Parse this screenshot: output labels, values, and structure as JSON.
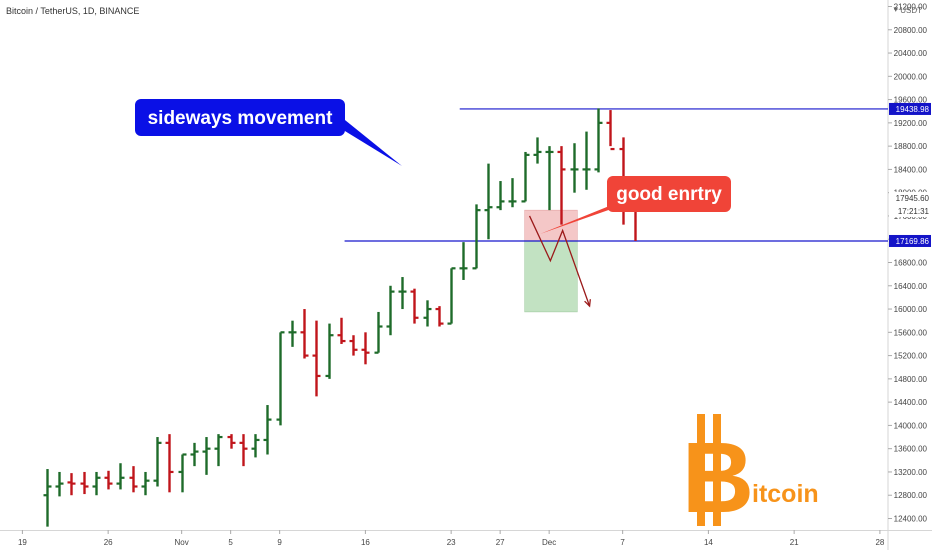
{
  "header": {
    "symbol_title": "Bitcoin / TetherUS, 1D, BINANCE",
    "currency": "USDT"
  },
  "chart_data": {
    "type": "ohlc",
    "title": "Bitcoin / TetherUS, 1D, BINANCE",
    "y_ticks": [
      12400,
      12800,
      13200,
      13600,
      14000,
      14400,
      14800,
      15200,
      15600,
      16000,
      16400,
      16800,
      17200,
      17600,
      18000,
      18400,
      18800,
      19200,
      19600,
      20000,
      20400,
      20800,
      21200
    ],
    "y_tick_labels": [
      "12400.00",
      "12800.00",
      "13200.00",
      "13600.00",
      "14000.00",
      "14400.00",
      "14800.00",
      "15200.00",
      "15600.00",
      "16000.00",
      "16400.00",
      "16800.00",
      "17200.00",
      "17600.00",
      "18000.00",
      "18400.00",
      "18800.00",
      "19200.00",
      "19600.00",
      "20000.00",
      "20400.00",
      "20800.00",
      "21200.00"
    ],
    "ylim": [
      12260,
      21260
    ],
    "x_labels": [
      {
        "label": "19",
        "day": 0
      },
      {
        "label": "26",
        "day": 7
      },
      {
        "label": "Nov",
        "day": 13
      },
      {
        "label": "5",
        "day": 17
      },
      {
        "label": "9",
        "day": 21
      },
      {
        "label": "16",
        "day": 28
      },
      {
        "label": "23",
        "day": 35
      },
      {
        "label": "27",
        "day": 39
      },
      {
        "label": "Dec",
        "day": 43
      },
      {
        "label": "7",
        "day": 49
      },
      {
        "label": "14",
        "day": 56
      },
      {
        "label": "21",
        "day": 63
      },
      {
        "label": "28",
        "day": 70
      }
    ],
    "price_badges": [
      {
        "value": "19438.98",
        "style": "blue"
      },
      {
        "value": "17945.60",
        "style": "plain"
      },
      {
        "value": "17:21:31",
        "style": "plain"
      },
      {
        "value": "17169.86",
        "style": "blue"
      }
    ],
    "horizontal_lines": [
      {
        "value": 19438.98,
        "from_day": 35.7
      },
      {
        "value": 17169.86,
        "from_day": 26.3
      }
    ],
    "candles": [
      {
        "day": 2,
        "o": 12800,
        "h": 13250,
        "l": 12260,
        "c": 12950
      },
      {
        "day": 3,
        "o": 12950,
        "h": 13200,
        "l": 12780,
        "c": 13000
      },
      {
        "day": 4,
        "o": 13020,
        "h": 13180,
        "l": 12800,
        "c": 13000
      },
      {
        "day": 5,
        "o": 13000,
        "h": 13200,
        "l": 12820,
        "c": 12950
      },
      {
        "day": 6,
        "o": 12950,
        "h": 13200,
        "l": 12800,
        "c": 13100
      },
      {
        "day": 7,
        "o": 13100,
        "h": 13220,
        "l": 12900,
        "c": 13000
      },
      {
        "day": 8,
        "o": 13000,
        "h": 13350,
        "l": 12900,
        "c": 13100
      },
      {
        "day": 9,
        "o": 13100,
        "h": 13300,
        "l": 12850,
        "c": 12950
      },
      {
        "day": 10,
        "o": 12950,
        "h": 13200,
        "l": 12800,
        "c": 13050
      },
      {
        "day": 11,
        "o": 13050,
        "h": 13800,
        "l": 12950,
        "c": 13700
      },
      {
        "day": 12,
        "o": 13700,
        "h": 13850,
        "l": 12850,
        "c": 13200
      },
      {
        "day": 13,
        "o": 13200,
        "h": 13500,
        "l": 12850,
        "c": 13500
      },
      {
        "day": 14,
        "o": 13500,
        "h": 13700,
        "l": 13300,
        "c": 13550
      },
      {
        "day": 15,
        "o": 13550,
        "h": 13800,
        "l": 13150,
        "c": 13600
      },
      {
        "day": 16,
        "o": 13600,
        "h": 13850,
        "l": 13300,
        "c": 13800
      },
      {
        "day": 17,
        "o": 13800,
        "h": 13850,
        "l": 13600,
        "c": 13700
      },
      {
        "day": 18,
        "o": 13700,
        "h": 13850,
        "l": 13300,
        "c": 13600
      },
      {
        "day": 19,
        "o": 13600,
        "h": 13850,
        "l": 13450,
        "c": 13750
      },
      {
        "day": 20,
        "o": 13750,
        "h": 14350,
        "l": 13500,
        "c": 14100
      },
      {
        "day": 21,
        "o": 14100,
        "h": 15600,
        "l": 14000,
        "c": 15600
      },
      {
        "day": 22,
        "o": 15600,
        "h": 15800,
        "l": 15350,
        "c": 15600
      },
      {
        "day": 23,
        "o": 15600,
        "h": 16000,
        "l": 15150,
        "c": 15200
      },
      {
        "day": 24,
        "o": 15200,
        "h": 15800,
        "l": 14500,
        "c": 14850
      },
      {
        "day": 25,
        "o": 14850,
        "h": 15750,
        "l": 14800,
        "c": 15550
      },
      {
        "day": 26,
        "o": 15550,
        "h": 15850,
        "l": 15400,
        "c": 15450
      },
      {
        "day": 27,
        "o": 15450,
        "h": 15550,
        "l": 15200,
        "c": 15300
      },
      {
        "day": 28,
        "o": 15300,
        "h": 15600,
        "l": 15050,
        "c": 15250
      },
      {
        "day": 29,
        "o": 15250,
        "h": 15950,
        "l": 15250,
        "c": 15700
      },
      {
        "day": 30,
        "o": 15700,
        "h": 16400,
        "l": 15550,
        "c": 16300
      },
      {
        "day": 31,
        "o": 16300,
        "h": 16550,
        "l": 16000,
        "c": 16300
      },
      {
        "day": 32,
        "o": 16300,
        "h": 16350,
        "l": 15750,
        "c": 15850
      },
      {
        "day": 33,
        "o": 15850,
        "h": 16150,
        "l": 15700,
        "c": 16000
      },
      {
        "day": 34,
        "o": 16000,
        "h": 16050,
        "l": 15700,
        "c": 15750
      },
      {
        "day": 35,
        "o": 15750,
        "h": 16700,
        "l": 15750,
        "c": 16700
      },
      {
        "day": 36,
        "o": 16700,
        "h": 17150,
        "l": 16500,
        "c": 16700
      },
      {
        "day": 37,
        "o": 16700,
        "h": 17800,
        "l": 16700,
        "c": 17700
      },
      {
        "day": 38,
        "o": 17700,
        "h": 18500,
        "l": 17200,
        "c": 17750
      },
      {
        "day": 39,
        "o": 17750,
        "h": 18200,
        "l": 17700,
        "c": 17850
      },
      {
        "day": 40,
        "o": 17850,
        "h": 18250,
        "l": 17750,
        "c": 17850
      },
      {
        "day": 41,
        "o": 17850,
        "h": 18700,
        "l": 17850,
        "c": 18650
      },
      {
        "day": 42,
        "o": 18650,
        "h": 18950,
        "l": 18500,
        "c": 18700
      },
      {
        "day": 43,
        "o": 18700,
        "h": 18800,
        "l": 17700,
        "c": 18700
      },
      {
        "day": 44,
        "o": 18700,
        "h": 18800,
        "l": 17450,
        "c": 18400
      },
      {
        "day": 45,
        "o": 18400,
        "h": 18850,
        "l": 18000,
        "c": 18400
      },
      {
        "day": 46,
        "o": 18400,
        "h": 19050,
        "l": 18050,
        "c": 18400
      },
      {
        "day": 47,
        "o": 18400,
        "h": 19450,
        "l": 18350,
        "c": 19200
      },
      {
        "day": 48,
        "o": 19200,
        "h": 19420,
        "l": 18800,
        "c": 18750
      },
      {
        "day": 49,
        "o": 18750,
        "h": 18950,
        "l": 17450,
        "c": 18000
      },
      {
        "day": 50,
        "o": 18000,
        "h": 18000,
        "l": 17170,
        "c": 17950
      }
    ],
    "position": {
      "day_start": 41.0,
      "day_end": 45.3,
      "entry": 17169.86,
      "stop": 17700,
      "target": 15950
    },
    "projection_path": [
      {
        "day": 41.4,
        "price": 17600
      },
      {
        "day": 43.1,
        "price": 16830
      },
      {
        "day": 44.1,
        "price": 17350
      },
      {
        "day": 46.3,
        "price": 16050
      }
    ],
    "annotations": [
      {
        "text": "sideways movement",
        "color": "#0a10e6"
      },
      {
        "text": "good enrtry",
        "color": "#f04438"
      }
    ]
  },
  "watermark": {
    "letter": "B",
    "text": "itcoin",
    "color": "#f7931a"
  },
  "colors": {
    "up": "#1e6b2a",
    "down": "#c0151b",
    "level_line": "#1616cc",
    "badge_blue": "#1414c8",
    "stop_zone": "rgba(230,130,130,0.45)",
    "target_zone": "rgba(120,190,120,0.45)",
    "projection": "#9b1a1a"
  }
}
